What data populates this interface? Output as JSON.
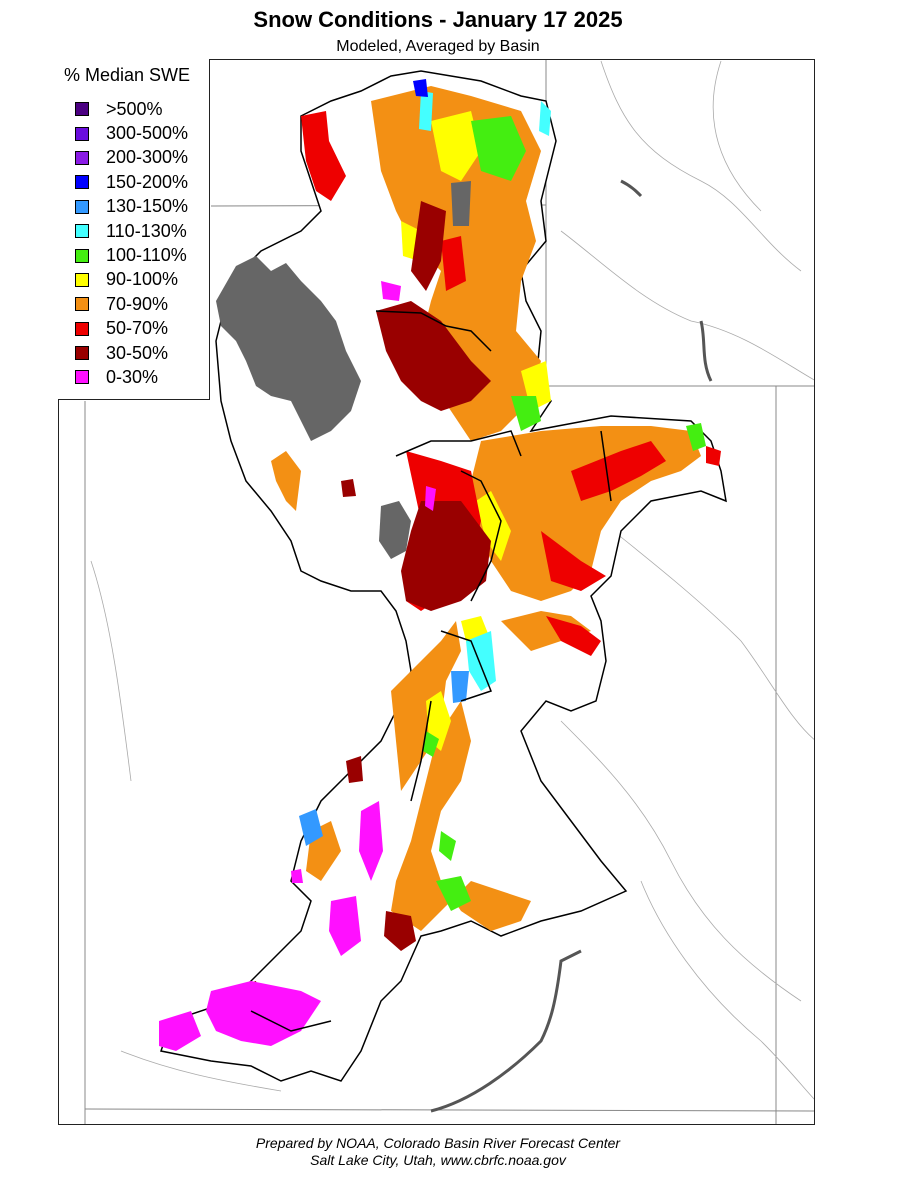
{
  "title": "Snow Conditions - January 17 2025",
  "subtitle": "Modeled, Averaged by Basin",
  "legend": {
    "title": "% Median SWE",
    "items": [
      {
        "label": ">500%",
        "color": "#4b0082"
      },
      {
        "label": "300-500%",
        "color": "#6a0dde"
      },
      {
        "label": "200-300%",
        "color": "#8a1be6"
      },
      {
        "label": "150-200%",
        "color": "#0000ff"
      },
      {
        "label": "130-150%",
        "color": "#3399ff"
      },
      {
        "label": "110-130%",
        "color": "#44ffff"
      },
      {
        "label": "100-110%",
        "color": "#44ee11"
      },
      {
        "label": "90-100%",
        "color": "#ffff00"
      },
      {
        "label": "70-90%",
        "color": "#f39014"
      },
      {
        "label": "50-70%",
        "color": "#ee0000"
      },
      {
        "label": "30-50%",
        "color": "#990000"
      },
      {
        "label": "0-30%",
        "color": "#ff10ff"
      }
    ]
  },
  "lake_color": "#666666",
  "credit": {
    "line1": "Prepared by NOAA, Colorado Basin River Forecast Center",
    "line2": "Salt Lake City, Utah, www.cbrfc.noaa.gov"
  }
}
